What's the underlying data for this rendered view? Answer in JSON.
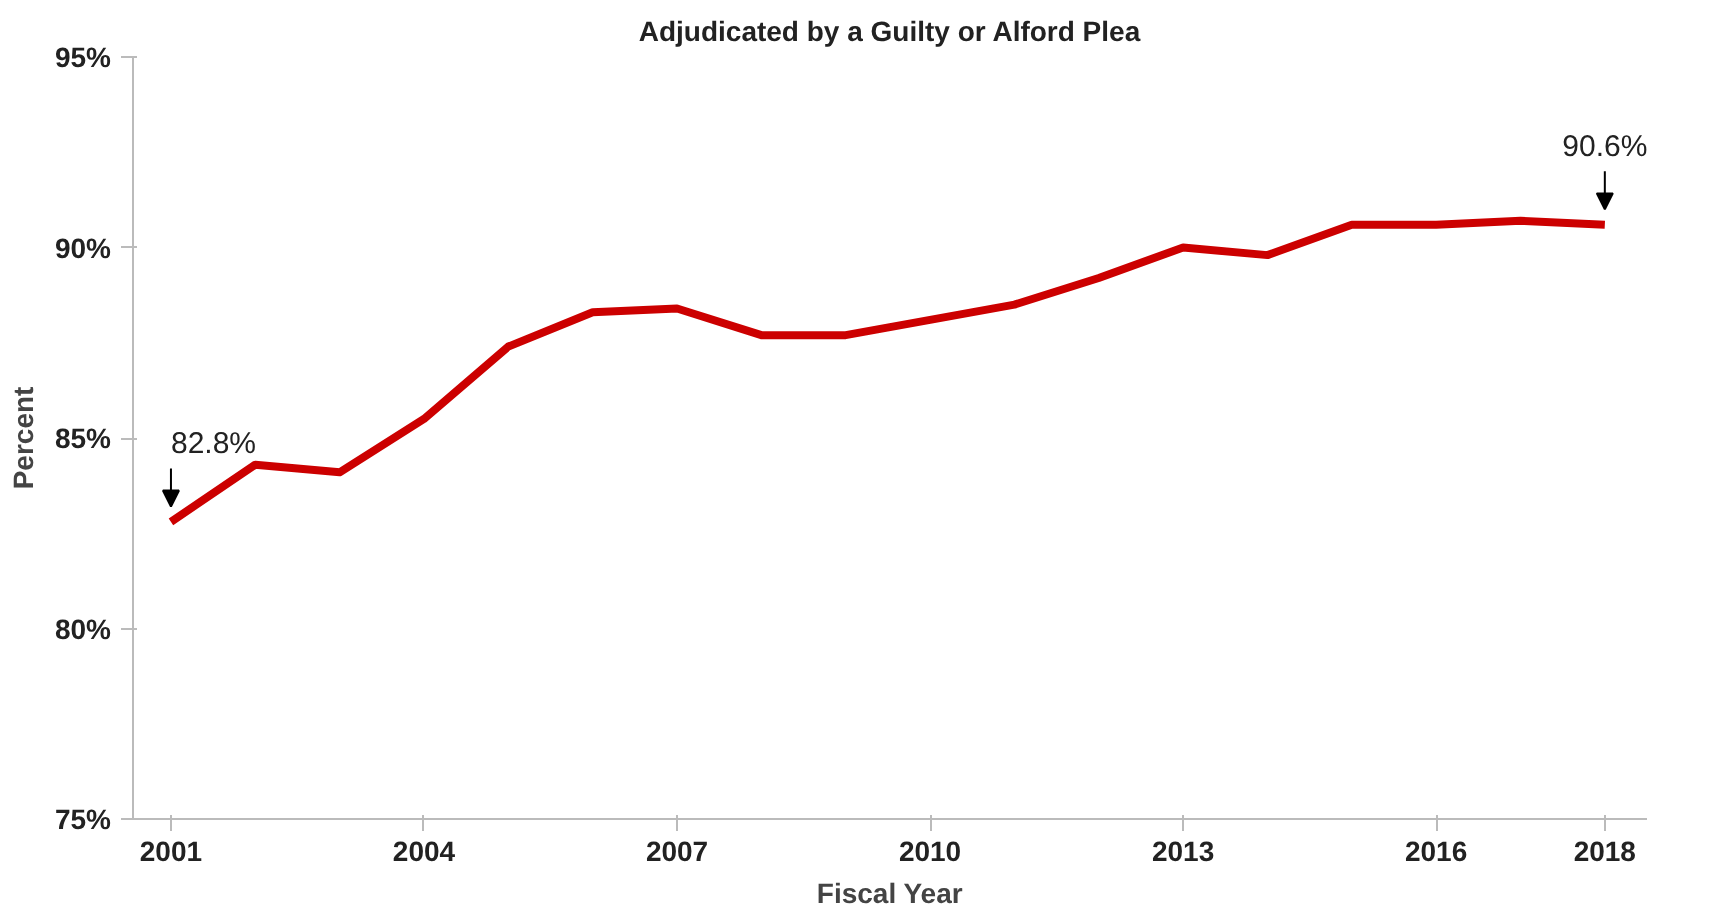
{
  "chart_data": {
    "type": "line",
    "title": "Adjudicated by a Guilty or Alford Plea",
    "xlabel": "Fiscal Year",
    "ylabel": "Percent",
    "x": [
      2001,
      2002,
      2003,
      2004,
      2005,
      2006,
      2007,
      2008,
      2009,
      2010,
      2011,
      2012,
      2013,
      2014,
      2015,
      2016,
      2017,
      2018
    ],
    "series": [
      {
        "color": "#cc0000",
        "values": [
          82.8,
          84.3,
          84.1,
          85.5,
          87.4,
          88.3,
          88.4,
          87.7,
          87.7,
          88.1,
          88.5,
          89.2,
          90.0,
          89.8,
          90.6,
          90.6,
          90.7,
          90.6
        ]
      }
    ],
    "xlim": [
      2000.55,
      2018.5
    ],
    "xticks": [
      2001,
      2004,
      2007,
      2010,
      2013,
      2016,
      2018
    ],
    "ylim": [
      75,
      95
    ],
    "yticks": [
      {
        "value": 75,
        "label": "75%"
      },
      {
        "value": 80,
        "label": "80%"
      },
      {
        "value": 85,
        "label": "85%"
      },
      {
        "value": 90,
        "label": "90%"
      },
      {
        "value": 95,
        "label": "95%"
      }
    ],
    "annotations": [
      {
        "text": "82.8%",
        "x": 2001,
        "y": 82.8
      },
      {
        "text": "90.6%",
        "x": 2018,
        "y": 90.6
      }
    ],
    "grid": false,
    "marker": "none",
    "line_style": "solid"
  }
}
